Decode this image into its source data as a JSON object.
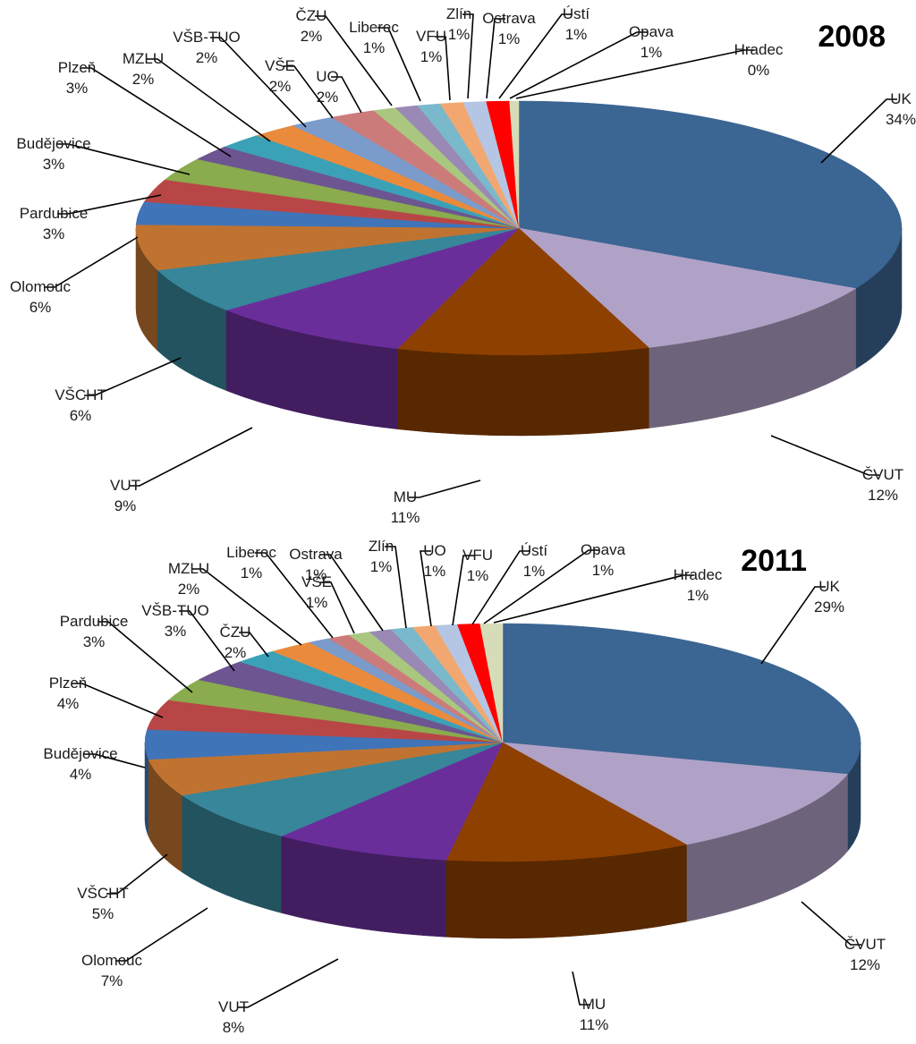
{
  "chart_data": [
    {
      "type": "pie",
      "title": "2008",
      "unit": "%",
      "slices": [
        {
          "label": "UK",
          "value": 34,
          "value_label": "34%",
          "color": "#3b6592"
        },
        {
          "label": "ČVUT",
          "value": 12,
          "value_label": "12%",
          "color": "#b0a2c7"
        },
        {
          "label": "MU",
          "value": 11,
          "value_label": "11%",
          "color": "#8e4000"
        },
        {
          "label": "VUT",
          "value": 9,
          "value_label": "9%",
          "color": "#6a2e9b"
        },
        {
          "label": "VŠCHT",
          "value": 6,
          "value_label": "6%",
          "color": "#37869a"
        },
        {
          "label": "Olomouc",
          "value": 6,
          "value_label": "6%",
          "color": "#c07331"
        },
        {
          "label": "Pardubice",
          "value": 3,
          "value_label": "3%",
          "color": "#3f74b8"
        },
        {
          "label": "Budějovice",
          "value": 3,
          "value_label": "3%",
          "color": "#b84646"
        },
        {
          "label": "Plzeň",
          "value": 3,
          "value_label": "3%",
          "color": "#8aab4e"
        },
        {
          "label": "MZLU",
          "value": 2,
          "value_label": "2%",
          "color": "#6c5591"
        },
        {
          "label": "VŠB-TUO",
          "value": 2,
          "value_label": "2%",
          "color": "#3ba1b7"
        },
        {
          "label": "VŠE",
          "value": 2,
          "value_label": "2%",
          "color": "#e98a3c"
        },
        {
          "label": "UO",
          "value": 2,
          "value_label": "2%",
          "color": "#7b9bcb"
        },
        {
          "label": "ČZU",
          "value": 2,
          "value_label": "2%",
          "color": "#cc7b7b"
        },
        {
          "label": "Liberec",
          "value": 1,
          "value_label": "1%",
          "color": "#a9c77f"
        },
        {
          "label": "VFU",
          "value": 1,
          "value_label": "1%",
          "color": "#9a89b4"
        },
        {
          "label": "Zlín",
          "value": 1,
          "value_label": "1%",
          "color": "#7ab8cc"
        },
        {
          "label": "Ostrava",
          "value": 1,
          "value_label": "1%",
          "color": "#f2a771"
        },
        {
          "label": "Ústí",
          "value": 1,
          "value_label": "1%",
          "color": "#b4c6e4"
        },
        {
          "label": "Opava",
          "value": 1,
          "value_label": "1%",
          "color": "#ff0000"
        },
        {
          "label": "Hradec",
          "value": 0.4,
          "value_label": "0%",
          "color": "#d6dcb8"
        }
      ]
    },
    {
      "type": "pie",
      "title": "2011",
      "unit": "%",
      "slices": [
        {
          "label": "UK",
          "value": 29,
          "value_label": "29%",
          "color": "#3b6592"
        },
        {
          "label": "ČVUT",
          "value": 12,
          "value_label": "12%",
          "color": "#b0a2c7"
        },
        {
          "label": "MU",
          "value": 11,
          "value_label": "11%",
          "color": "#8e4000"
        },
        {
          "label": "VUT",
          "value": 8,
          "value_label": "8%",
          "color": "#6a2e9b"
        },
        {
          "label": "Olomouc",
          "value": 7,
          "value_label": "7%",
          "color": "#37869a"
        },
        {
          "label": "VŠCHT",
          "value": 5,
          "value_label": "5%",
          "color": "#c07331"
        },
        {
          "label": "Budějovice",
          "value": 4,
          "value_label": "4%",
          "color": "#3f74b8"
        },
        {
          "label": "Plzeň",
          "value": 4,
          "value_label": "4%",
          "color": "#b84646"
        },
        {
          "label": "Pardubice",
          "value": 3,
          "value_label": "3%",
          "color": "#8aab4e"
        },
        {
          "label": "VŠB-TUO",
          "value": 3,
          "value_label": "3%",
          "color": "#6c5591"
        },
        {
          "label": "ČZU",
          "value": 2,
          "value_label": "2%",
          "color": "#3ba1b7"
        },
        {
          "label": "MZLU",
          "value": 2,
          "value_label": "2%",
          "color": "#e98a3c"
        },
        {
          "label": "Liberec",
          "value": 1,
          "value_label": "1%",
          "color": "#7b9bcb"
        },
        {
          "label": "VŠE",
          "value": 1,
          "value_label": "1%",
          "color": "#cc7b7b"
        },
        {
          "label": "Ostrava",
          "value": 1,
          "value_label": "1%",
          "color": "#a9c77f"
        },
        {
          "label": "Zlín",
          "value": 1,
          "value_label": "1%",
          "color": "#9a89b4"
        },
        {
          "label": "UO",
          "value": 1,
          "value_label": "1%",
          "color": "#7ab8cc"
        },
        {
          "label": "VFU",
          "value": 1,
          "value_label": "1%",
          "color": "#f2a771"
        },
        {
          "label": "Ústí",
          "value": 1,
          "value_label": "1%",
          "color": "#b4c6e4"
        },
        {
          "label": "Opava",
          "value": 1,
          "value_label": "1%",
          "color": "#ff0000"
        },
        {
          "label": "Hradec",
          "value": 1,
          "value_label": "1%",
          "color": "#d6dcb8"
        }
      ]
    }
  ]
}
